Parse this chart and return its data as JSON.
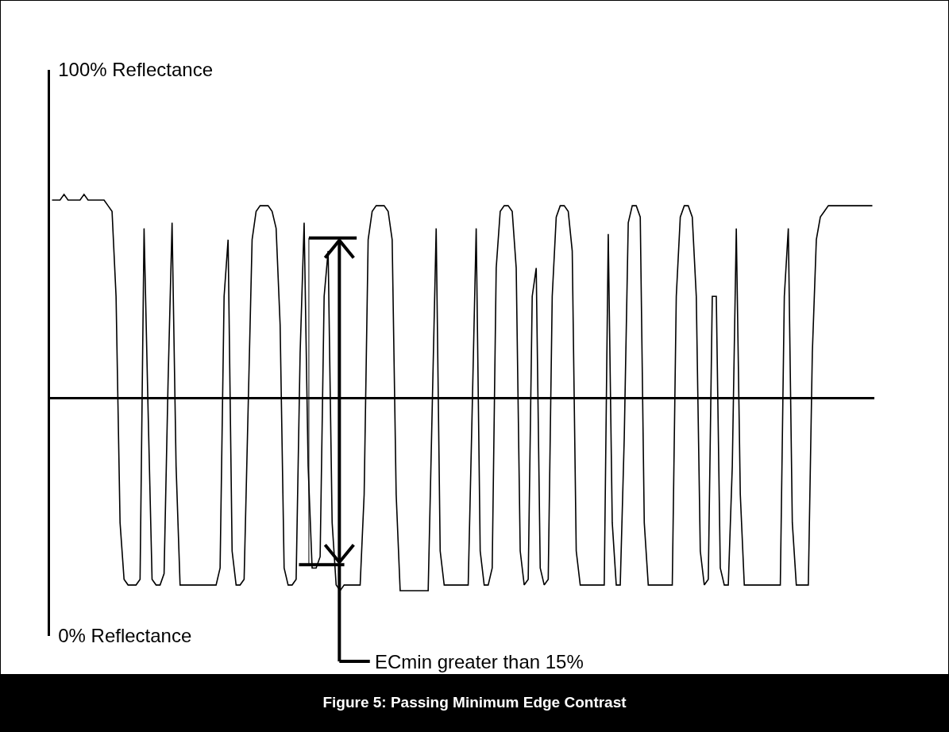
{
  "chart_data": {
    "type": "line",
    "title": "Figure 5: Passing Minimum Edge Contrast",
    "categories": [
      null,
      null,
      null,
      null,
      null,
      null,
      null,
      null,
      null,
      null,
      null,
      null,
      null,
      null,
      null,
      null,
      null,
      null,
      null,
      null,
      null,
      null,
      null,
      null,
      null,
      null,
      null,
      null,
      null,
      null,
      null,
      null,
      null,
      null,
      null,
      null,
      null,
      null,
      null,
      null,
      null,
      null,
      null,
      null,
      null,
      null,
      null,
      null,
      null,
      null,
      null,
      null,
      null,
      null,
      null,
      null,
      null,
      null,
      null,
      null,
      null,
      null,
      null,
      null,
      null,
      null,
      null,
      null,
      null,
      null,
      null,
      null,
      null,
      null,
      null,
      null,
      null,
      null,
      null,
      null,
      null,
      null,
      null,
      null,
      null,
      null,
      null,
      null,
      null,
      null,
      null,
      null,
      null,
      null,
      null,
      null,
      null,
      null,
      null,
      null,
      null,
      null,
      null,
      null,
      null,
      null,
      null,
      null,
      null,
      null,
      null,
      null,
      null,
      null,
      null,
      null,
      null,
      null,
      null,
      null,
      null,
      null,
      null,
      null,
      null,
      null,
      null,
      null,
      null,
      null,
      null,
      null,
      null,
      null,
      null,
      null,
      null,
      null,
      null,
      null,
      null,
      null,
      null,
      null,
      null,
      null,
      null,
      null,
      null,
      null,
      null,
      null,
      null,
      null,
      null,
      null,
      null,
      null,
      null,
      null,
      null,
      null,
      null,
      null,
      null,
      null,
      null,
      null,
      null,
      null,
      null,
      null,
      null,
      null,
      null,
      null,
      null,
      null,
      null,
      null,
      null,
      null,
      null,
      null,
      null,
      null,
      null,
      null,
      null,
      null,
      null,
      null,
      null,
      null,
      null,
      null,
      null,
      null,
      null,
      null,
      null,
      null,
      null,
      null,
      null,
      null
    ],
    "values": [
      77,
      77,
      77,
      78,
      77,
      77,
      77,
      77,
      78,
      77,
      77,
      77,
      77,
      77,
      76,
      75,
      60,
      20,
      10,
      9,
      9,
      9,
      10,
      72,
      40,
      10,
      9,
      9,
      11,
      45,
      73,
      30,
      9,
      9,
      9,
      9,
      9,
      9,
      9,
      9,
      9,
      9,
      12,
      60,
      70,
      15,
      9,
      9,
      10,
      40,
      70,
      75,
      76,
      76,
      76,
      75,
      72,
      55,
      12,
      9,
      9,
      10,
      50,
      73,
      30,
      12,
      12,
      14,
      60,
      68,
      20,
      9,
      8,
      9,
      9,
      9,
      9,
      9,
      25,
      70,
      75,
      76,
      76,
      76,
      75,
      70,
      25,
      8,
      8,
      8,
      8,
      8,
      8,
      8,
      8,
      40,
      72,
      15,
      9,
      9,
      9,
      9,
      9,
      9,
      9,
      40,
      72,
      15,
      9,
      9,
      12,
      65,
      75,
      76,
      76,
      75,
      65,
      15,
      9,
      10,
      60,
      65,
      12,
      9,
      10,
      60,
      74,
      76,
      76,
      75,
      68,
      15,
      9,
      9,
      9,
      9,
      9,
      9,
      9,
      71,
      20,
      9,
      9,
      35,
      73,
      76,
      76,
      74,
      20,
      9,
      9,
      9,
      9,
      9,
      9,
      9,
      60,
      74,
      76,
      76,
      74,
      60,
      15,
      9,
      10,
      60,
      60,
      12,
      9,
      9,
      30,
      72,
      25,
      9,
      9,
      9,
      9,
      9,
      9,
      9,
      9,
      9,
      9,
      60,
      72,
      20,
      9,
      9,
      9,
      9,
      50,
      70,
      74,
      75,
      76,
      76,
      76,
      76,
      76,
      76,
      76,
      76,
      76,
      76,
      76,
      76
    ],
    "color": "#000000",
    "marker": "none",
    "line_style": "solid",
    "grid": false,
    "ylim": [
      0,
      100
    ],
    "yticks": [
      {
        "value": 0,
        "label": "0% Reflectance"
      },
      {
        "value": 100,
        "label": "100% Reflectance"
      }
    ],
    "ref_lines": [
      {
        "axis": "y",
        "value": 42,
        "color": "#000000"
      }
    ],
    "annotations": [
      "ECmin greater than 15%"
    ]
  }
}
